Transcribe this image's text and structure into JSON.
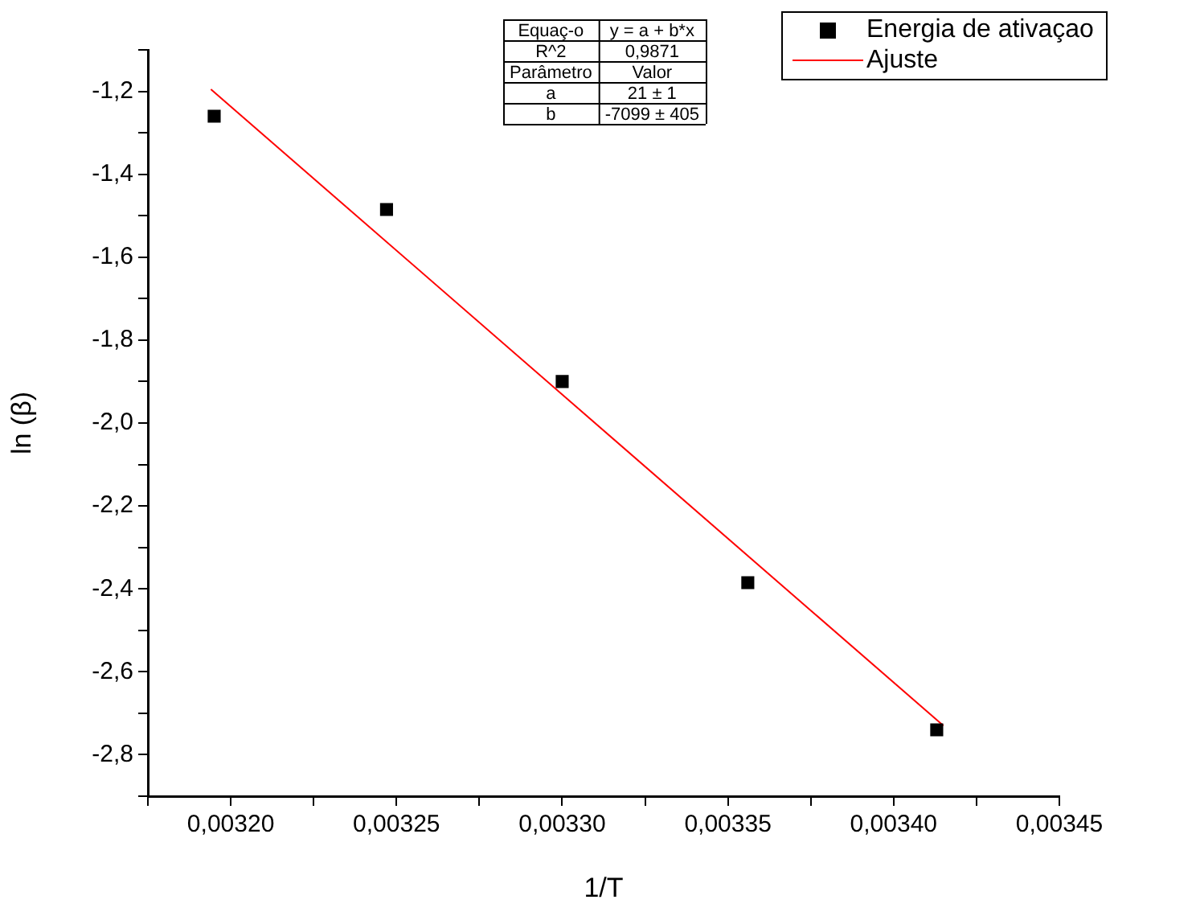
{
  "chart_data": {
    "type": "scatter",
    "xlabel": "1/T",
    "ylabel": "ln (β)",
    "xlim": [
      0.003175,
      0.00345
    ],
    "xticks": [
      {
        "value": 0.003175,
        "label": null
      },
      {
        "value": 0.0032,
        "label": "0,00320"
      },
      {
        "value": 0.003225,
        "label": null
      },
      {
        "value": 0.00325,
        "label": "0,00325"
      },
      {
        "value": 0.003275,
        "label": null
      },
      {
        "value": 0.0033,
        "label": "0,00330"
      },
      {
        "value": 0.003325,
        "label": null
      },
      {
        "value": 0.00335,
        "label": "0,00335"
      },
      {
        "value": 0.003375,
        "label": null
      },
      {
        "value": 0.0034,
        "label": "0,00340"
      },
      {
        "value": 0.003425,
        "label": null
      },
      {
        "value": 0.00345,
        "label": "0,00345"
      }
    ],
    "ylim": [
      -2.9,
      -1.1
    ],
    "yticks": [
      {
        "value": -2.9,
        "label": null
      },
      {
        "value": -2.8,
        "label": "-2,8"
      },
      {
        "value": -2.7,
        "label": null
      },
      {
        "value": -2.6,
        "label": "-2,6"
      },
      {
        "value": -2.5,
        "label": null
      },
      {
        "value": -2.4,
        "label": "-2,4"
      },
      {
        "value": -2.3,
        "label": null
      },
      {
        "value": -2.2,
        "label": "-2,2"
      },
      {
        "value": -2.1,
        "label": null
      },
      {
        "value": -2.0,
        "label": "-2,0"
      },
      {
        "value": -1.9,
        "label": null
      },
      {
        "value": -1.8,
        "label": "-1,8"
      },
      {
        "value": -1.7,
        "label": null
      },
      {
        "value": -1.6,
        "label": "-1,6"
      },
      {
        "value": -1.5,
        "label": null
      },
      {
        "value": -1.4,
        "label": "-1,4"
      },
      {
        "value": -1.3,
        "label": null
      },
      {
        "value": -1.2,
        "label": "-1,2"
      },
      {
        "value": -1.1,
        "label": null
      }
    ],
    "grid": false,
    "legend": "top right",
    "series": [
      {
        "name": "Energia de ativaçao",
        "color": "#000000",
        "type": "scatter",
        "marker": "square",
        "x": [
          0.003195,
          0.003247,
          0.0033,
          0.003356,
          0.003413
        ],
        "values": [
          -1.26,
          -1.485,
          -1.9,
          -2.385,
          -2.74
        ]
      },
      {
        "name": "Ajuste",
        "color": "#ff0000",
        "type": "line",
        "x": [
          0.003194,
          0.003415
        ],
        "values": [
          -1.195,
          -2.73
        ]
      }
    ],
    "annotations": [
      "Equaç-o",
      "y = a + b*x",
      "R^2",
      "0,9871",
      "Parâmetro",
      "Valor",
      "a",
      "21 ± 1",
      "b",
      "-7099 ± 405"
    ]
  }
}
